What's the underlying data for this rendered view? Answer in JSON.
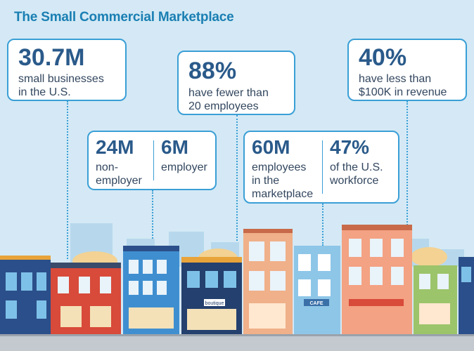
{
  "title": "The Small Commercial Marketplace",
  "stats": {
    "total": {
      "value": "30.7M",
      "line1": "small businesses",
      "line2": "in the U.S."
    },
    "employees": {
      "value": "88%",
      "line1": "have fewer than",
      "line2": "20 employees"
    },
    "revenue": {
      "value": "40%",
      "line1": "have less than",
      "line2": "$100K in revenue"
    },
    "nonemployer": {
      "value": "24M",
      "line1": "non-",
      "line2": "employer"
    },
    "employer": {
      "value": "6M",
      "line1": "employer"
    },
    "marketplace_employees": {
      "value": "60M",
      "line1": "employees",
      "line2": "in the",
      "line3": "marketplace"
    },
    "workforce": {
      "value": "47%",
      "line1": "of the U.S.",
      "line2": "workforce"
    }
  },
  "signs": {
    "cafe": "CAFE",
    "boutique": "boutique"
  },
  "colors": {
    "accent": "#3a9fd6",
    "title": "#1a7fb3",
    "number": "#2a5a8a"
  }
}
